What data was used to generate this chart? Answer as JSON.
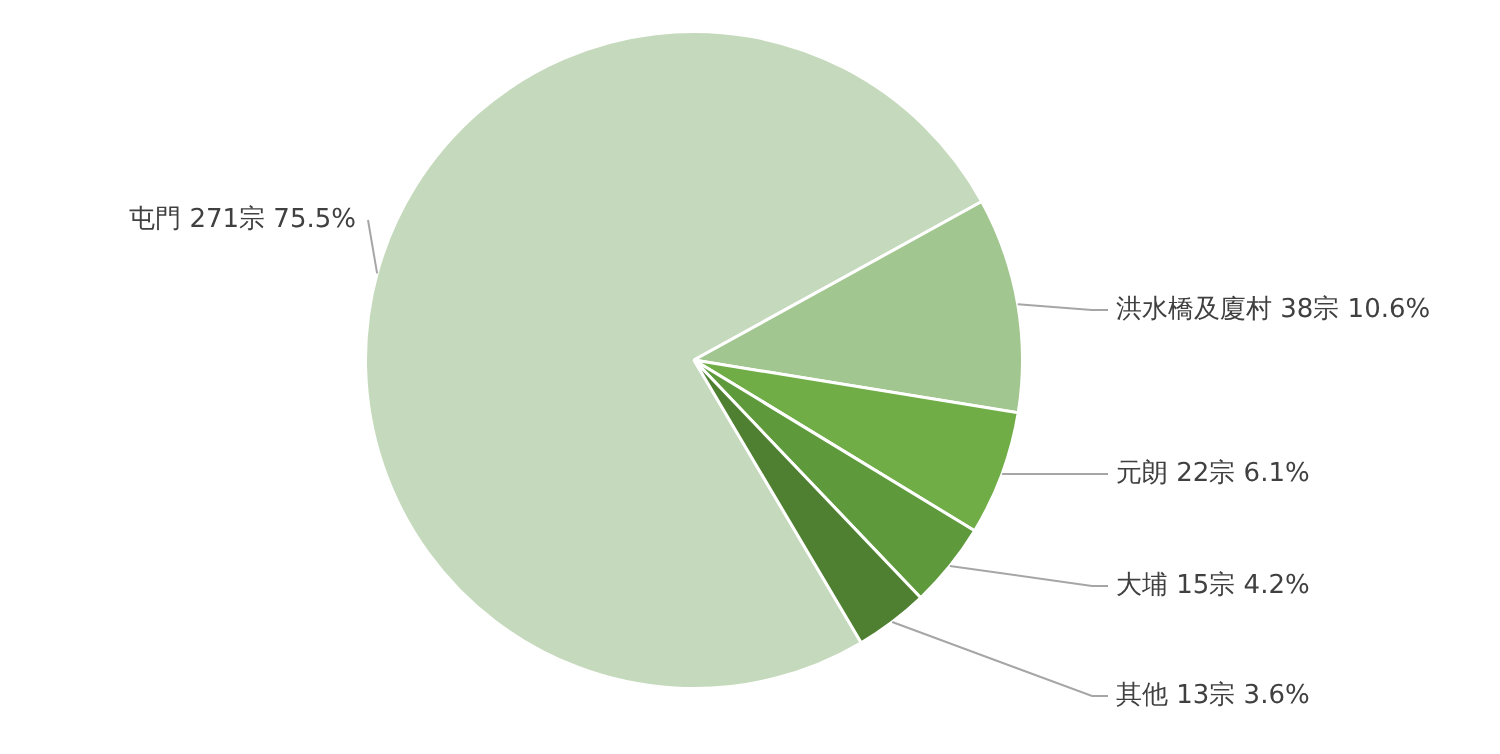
{
  "chart_data": {
    "type": "pie",
    "categories": [
      "屯門",
      "洪水橋及廈村",
      "元朗",
      "大埔",
      "其他"
    ],
    "values": [
      271,
      38,
      22,
      15,
      13
    ],
    "value_labels": [
      "271宗 75.5%",
      "38宗 10.6%",
      "22宗 6.1%",
      "15宗 4.2%",
      "13宗 3.6%"
    ],
    "colors": [
      "#c5d9bc",
      "#a2c68f",
      "#70ad47",
      "#5e9a3c",
      "#4f8031"
    ],
    "legend": false
  }
}
